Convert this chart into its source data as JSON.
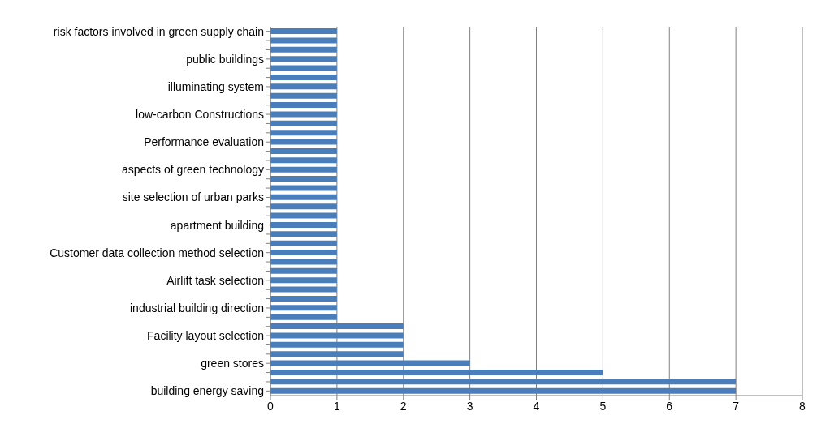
{
  "chart_data": {
    "type": "bar",
    "orientation": "horizontal",
    "categories": [
      "risk factors involved in green supply chain",
      null,
      null,
      "public buildings",
      null,
      null,
      "illuminating system",
      null,
      null,
      "low-carbon Constructions",
      null,
      null,
      "Performance evaluation",
      null,
      null,
      "aspects of green technology",
      null,
      null,
      "site selection of urban parks",
      null,
      null,
      "apartment building",
      null,
      null,
      "Customer data collection method selection",
      null,
      null,
      "Airlift task selection",
      null,
      null,
      "industrial building direction",
      null,
      null,
      "Facility layout selection",
      null,
      null,
      "green stores",
      null,
      null,
      "building energy saving"
    ],
    "values": [
      1,
      1,
      1,
      1,
      1,
      1,
      1,
      1,
      1,
      1,
      1,
      1,
      1,
      1,
      1,
      1,
      1,
      1,
      1,
      1,
      1,
      1,
      1,
      1,
      1,
      1,
      1,
      1,
      1,
      1,
      1,
      1,
      2,
      2,
      2,
      2,
      3,
      5,
      7,
      7
    ],
    "color": "#4a7ebb",
    "xlim": [
      0,
      8
    ],
    "xticks": [
      0,
      1,
      2,
      3,
      4,
      5,
      6,
      7,
      8
    ],
    "grid": "x"
  }
}
